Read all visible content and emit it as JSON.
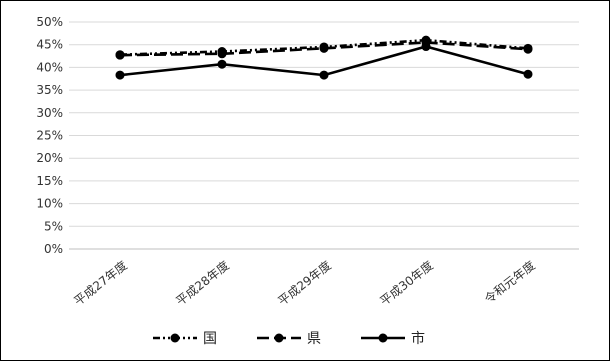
{
  "chart_data": {
    "type": "line",
    "categories": [
      "平成27年度",
      "平成28年度",
      "平成29年度",
      "平成30年度",
      "令和元年度"
    ],
    "series": [
      {
        "name": "国",
        "values": [
          42.8,
          43.5,
          44.5,
          46.0,
          44.2
        ],
        "line_style": "dash-dot-dot"
      },
      {
        "name": "県",
        "values": [
          42.7,
          43.0,
          44.2,
          45.5,
          44.0
        ],
        "line_style": "long-dash"
      },
      {
        "name": "市",
        "values": [
          38.3,
          40.7,
          38.3,
          44.6,
          38.5
        ],
        "line_style": "solid"
      }
    ],
    "y_ticks": [
      "50%",
      "45%",
      "40%",
      "35%",
      "30%",
      "25%",
      "20%",
      "15%",
      "10%",
      "5%",
      "0%"
    ],
    "ylim": [
      0,
      50
    ],
    "y_unit": "%",
    "grid": "horizontal",
    "legend_position": "bottom",
    "line_color": "#000000"
  }
}
